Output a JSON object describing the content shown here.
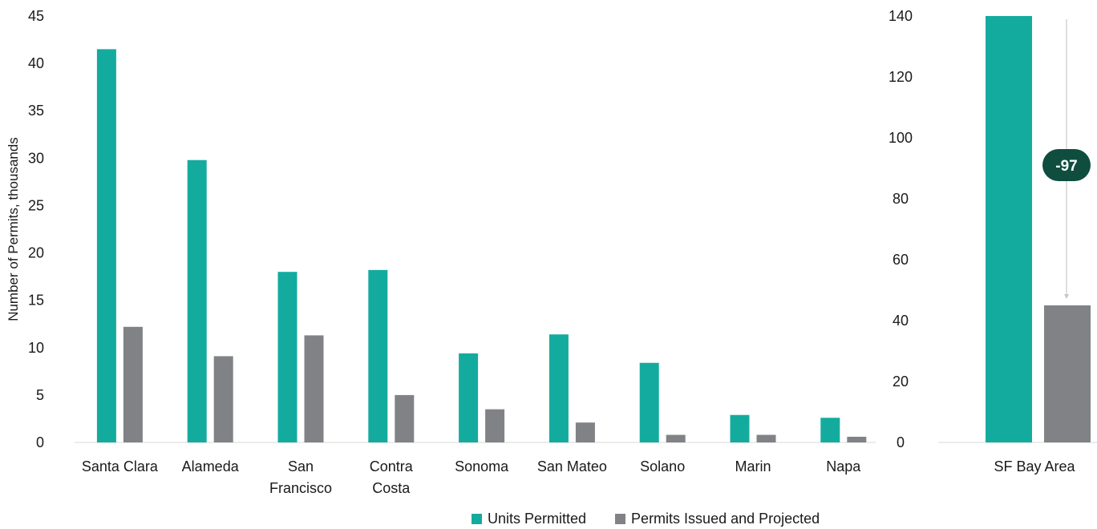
{
  "chart_data": [
    {
      "type": "bar",
      "categories": [
        "Santa Clara",
        "Alameda",
        "San Francisco",
        "Contra Costa",
        "Sonoma",
        "San Mateo",
        "Solano",
        "Marin",
        "Napa"
      ],
      "category_lines": [
        [
          "Santa Clara"
        ],
        [
          "Alameda"
        ],
        [
          "San",
          "Francisco"
        ],
        [
          "Contra",
          "Costa"
        ],
        [
          "Sonoma"
        ],
        [
          "San Mateo"
        ],
        [
          "Solano"
        ],
        [
          "Marin"
        ],
        [
          "Napa"
        ]
      ],
      "series": [
        {
          "name": "Units Permitted",
          "values": [
            41.5,
            29.8,
            18.0,
            18.2,
            9.4,
            11.4,
            8.4,
            2.9,
            2.6
          ],
          "color": "#14ab9f"
        },
        {
          "name": "Permits Issued and Projected",
          "values": [
            12.2,
            9.1,
            11.3,
            5.0,
            3.5,
            2.1,
            0.8,
            0.8,
            0.6
          ],
          "color": "#808285"
        }
      ],
      "ylabel": "Number of Permits, thousands",
      "ylim": [
        0,
        45
      ],
      "yticks": [
        0,
        5,
        10,
        15,
        20,
        25,
        30,
        35,
        40,
        45
      ],
      "grid": false
    },
    {
      "type": "bar",
      "categories": [
        "SF Bay Area"
      ],
      "series": [
        {
          "name": "Units Permitted",
          "values": [
            140
          ],
          "color": "#14ab9f"
        },
        {
          "name": "Permits Issued and Projected",
          "values": [
            45
          ],
          "color": "#808285"
        }
      ],
      "ylim": [
        0,
        140
      ],
      "yticks": [
        0,
        20,
        40,
        60,
        80,
        100,
        120,
        140
      ],
      "annotation": {
        "label": "-97",
        "from": 140,
        "to": 45,
        "color": "#0f4d3f"
      }
    }
  ],
  "legend": [
    {
      "label": "Units Permitted",
      "color": "#14ab9f"
    },
    {
      "label": "Permits Issued and Projected",
      "color": "#808285"
    }
  ]
}
